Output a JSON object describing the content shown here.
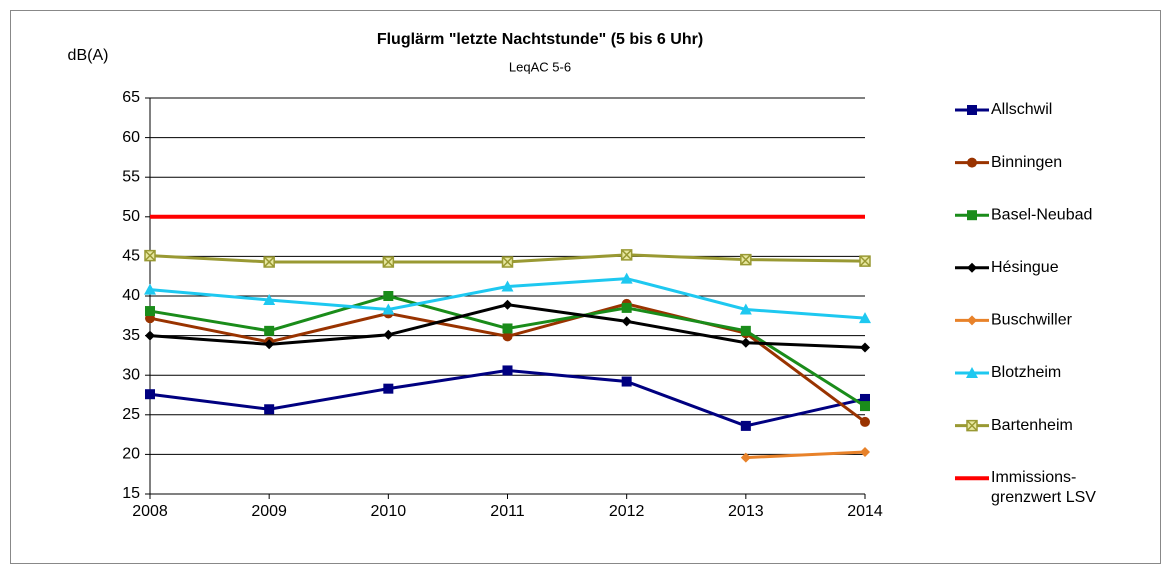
{
  "chart_data": {
    "type": "line",
    "title": "Fluglärm \"letzte Nachtstunde\" (5 bis 6 Uhr)",
    "subtitle": "LeqAC 5-6",
    "y_label": "dB(A)",
    "x": [
      2008,
      2009,
      2010,
      2011,
      2012,
      2013,
      2014
    ],
    "xlim": [
      2008,
      2014
    ],
    "xticks": [
      2008,
      2009,
      2010,
      2011,
      2012,
      2013,
      2014
    ],
    "ylim": [
      15,
      65
    ],
    "yticks": [
      15,
      20,
      25,
      30,
      35,
      40,
      45,
      50,
      55,
      60,
      65
    ],
    "grid": true,
    "legend": "right",
    "series": [
      {
        "name": "Allschwil",
        "color": "#000080",
        "marker": "square",
        "values": [
          27.6,
          25.7,
          28.3,
          30.6,
          29.2,
          23.6,
          27.0
        ]
      },
      {
        "name": "Binningen",
        "color": "#993300",
        "marker": "circle",
        "values": [
          37.2,
          34.2,
          37.8,
          34.9,
          39.0,
          35.3,
          24.1
        ]
      },
      {
        "name": "Basel-Neubad",
        "color": "#1a8c1a",
        "marker": "square",
        "values": [
          38.1,
          35.6,
          40.0,
          35.9,
          38.5,
          35.6,
          26.1
        ]
      },
      {
        "name": "Hésingue",
        "color": "#000000",
        "marker": "diamond",
        "values": [
          35.0,
          33.9,
          35.1,
          38.9,
          36.8,
          34.1,
          33.5
        ]
      },
      {
        "name": "Buschwiller",
        "color": "#e8822a",
        "marker": "diamond",
        "values": [
          null,
          null,
          null,
          null,
          null,
          19.6,
          20.3
        ]
      },
      {
        "name": "Blotzheim",
        "color": "#1ec8f0",
        "marker": "triangle",
        "values": [
          40.8,
          39.5,
          38.3,
          41.2,
          42.2,
          38.3,
          37.2
        ]
      },
      {
        "name": "Bartenheim",
        "color": "#999933",
        "marker": "xbox",
        "values": [
          45.1,
          44.3,
          44.3,
          44.3,
          45.2,
          44.6,
          44.4
        ]
      },
      {
        "name": "Immissions-\ngrenzwert LSV",
        "color": "#ff0000",
        "marker": "none",
        "values": [
          50,
          50,
          50,
          50,
          50,
          50,
          50
        ]
      }
    ]
  }
}
